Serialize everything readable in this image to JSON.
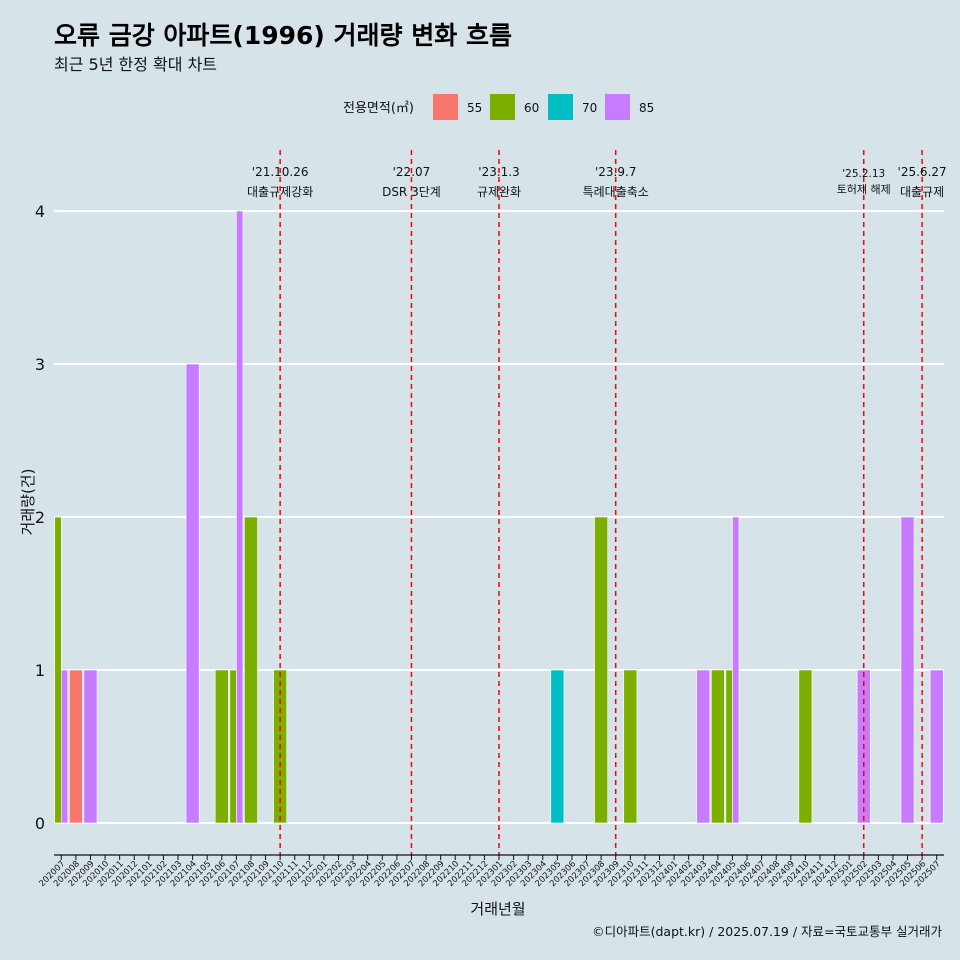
{
  "chart_data": {
    "type": "bar",
    "title": "오류 금강 아파트(1996) 거래량 변화 흐름",
    "subtitle": "최근 5년 한정 확대 차트",
    "xlabel": "거래년월",
    "ylabel": "거래량(건)",
    "ylim": [
      0,
      4
    ],
    "y_ticks": [
      "0",
      "1",
      "2",
      "3",
      "4"
    ],
    "legend_title": "전용면적(㎡)",
    "legend_position": "top",
    "grid": true,
    "caption": "©디아파트(dapt.kr) / 2025.07.19 / 자료=국토교통부 실거래가",
    "categories": [
      "202007",
      "202008",
      "202009",
      "202010",
      "202011",
      "202012",
      "202101",
      "202102",
      "202103",
      "202104",
      "202105",
      "202106",
      "202107",
      "202108",
      "202109",
      "202110",
      "202111",
      "202112",
      "202201",
      "202202",
      "202203",
      "202204",
      "202205",
      "202206",
      "202207",
      "202208",
      "202209",
      "202210",
      "202211",
      "202212",
      "202301",
      "202302",
      "202303",
      "202304",
      "202305",
      "202306",
      "202307",
      "202308",
      "202309",
      "202310",
      "202311",
      "202312",
      "202401",
      "202402",
      "202403",
      "202404",
      "202405",
      "202406",
      "202407",
      "202408",
      "202409",
      "202410",
      "202411",
      "202412",
      "202501",
      "202502",
      "202503",
      "202504",
      "202505",
      "202506",
      "202507"
    ],
    "series": [
      {
        "name": "55",
        "color": "#f8766d",
        "values": [
          0,
          1,
          0,
          0,
          0,
          0,
          0,
          0,
          0,
          0,
          0,
          0,
          0,
          0,
          0,
          0,
          0,
          0,
          0,
          0,
          0,
          0,
          0,
          0,
          0,
          0,
          0,
          0,
          0,
          0,
          0,
          0,
          0,
          0,
          0,
          0,
          0,
          0,
          0,
          0,
          0,
          0,
          0,
          0,
          0,
          0,
          0,
          0,
          0,
          0,
          0,
          0,
          0,
          0,
          0,
          0,
          0,
          0,
          0,
          0,
          0
        ]
      },
      {
        "name": "60",
        "color": "#7cae00",
        "values": [
          2,
          0,
          0,
          0,
          0,
          0,
          0,
          0,
          0,
          0,
          0,
          1,
          1,
          2,
          0,
          1,
          0,
          0,
          0,
          0,
          0,
          0,
          0,
          0,
          0,
          0,
          0,
          0,
          0,
          0,
          0,
          0,
          0,
          0,
          0,
          0,
          0,
          2,
          0,
          1,
          0,
          0,
          0,
          0,
          0,
          1,
          1,
          0,
          0,
          0,
          0,
          1,
          0,
          0,
          0,
          0,
          0,
          0,
          0,
          0,
          0
        ]
      },
      {
        "name": "70",
        "color": "#00bfc4",
        "values": [
          0,
          0,
          0,
          0,
          0,
          0,
          0,
          0,
          0,
          0,
          0,
          0,
          0,
          0,
          0,
          0,
          0,
          0,
          0,
          0,
          0,
          0,
          0,
          0,
          0,
          0,
          0,
          0,
          0,
          0,
          0,
          0,
          0,
          0,
          1,
          0,
          0,
          0,
          0,
          0,
          0,
          0,
          0,
          0,
          0,
          0,
          0,
          0,
          0,
          0,
          0,
          0,
          0,
          0,
          0,
          0,
          0,
          0,
          0,
          0,
          0
        ]
      },
      {
        "name": "85",
        "color": "#c77cff",
        "values": [
          1,
          0,
          1,
          0,
          0,
          0,
          0,
          0,
          0,
          3,
          0,
          0,
          4,
          0,
          0,
          0,
          0,
          0,
          0,
          0,
          0,
          0,
          0,
          0,
          0,
          0,
          0,
          0,
          0,
          0,
          0,
          0,
          0,
          0,
          0,
          0,
          0,
          0,
          0,
          0,
          0,
          0,
          0,
          0,
          1,
          0,
          2,
          0,
          0,
          0,
          0,
          0,
          0,
          0,
          0,
          1,
          0,
          0,
          2,
          0,
          1
        ]
      }
    ],
    "annotations": [
      {
        "date": "'21.10.26",
        "text": "대출규제강화",
        "x": "202110"
      },
      {
        "date": "'22.07",
        "text": "DSR 3단계",
        "x": "202207"
      },
      {
        "date": "'23.1.3",
        "text": "규제완화",
        "x": "202301"
      },
      {
        "date": "'23.9.7",
        "text": "특례대출축소",
        "x": "202309"
      },
      {
        "date": "'25.2.13",
        "text": "토허제 해제",
        "x": "202502"
      },
      {
        "date": "'25.6.27",
        "text": "대출규제",
        "x": "202506"
      }
    ],
    "annotation_color": "#ff0000"
  }
}
